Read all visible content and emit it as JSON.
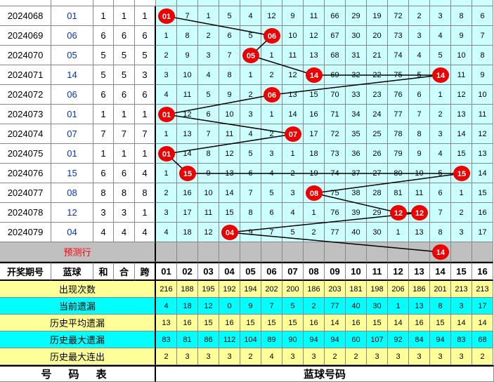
{
  "rows": [
    {
      "period": "2024068",
      "blue": "01",
      "sum": 1,
      "he": 1,
      "span": 1,
      "cells": [
        "01",
        "7",
        "1",
        "5",
        "4",
        "12",
        "9",
        "11",
        "66",
        "29",
        "19",
        "72",
        "2",
        "3",
        "8",
        "6"
      ]
    },
    {
      "period": "2024069",
      "blue": "06",
      "sum": 6,
      "he": 6,
      "span": 6,
      "cells": [
        "1",
        "8",
        "2",
        "6",
        "5",
        "06",
        "10",
        "12",
        "67",
        "30",
        "20",
        "73",
        "3",
        "4",
        "9",
        "7"
      ]
    },
    {
      "period": "2024070",
      "blue": "05",
      "sum": 5,
      "he": 5,
      "span": 5,
      "cells": [
        "2",
        "9",
        "3",
        "7",
        "05",
        "1",
        "11",
        "13",
        "68",
        "31",
        "21",
        "74",
        "4",
        "5",
        "10",
        "8"
      ]
    },
    {
      "period": "2024071",
      "blue": "14",
      "sum": 5,
      "he": 5,
      "span": 3,
      "cells": [
        "3",
        "10",
        "4",
        "8",
        "1",
        "2",
        "12",
        "14",
        "69",
        "32",
        "22",
        "75",
        "5",
        "14",
        "11",
        "9"
      ]
    },
    {
      "period": "2024072",
      "blue": "06",
      "sum": 6,
      "he": 6,
      "span": 6,
      "cells": [
        "4",
        "11",
        "5",
        "9",
        "2",
        "06",
        "13",
        "15",
        "70",
        "33",
        "23",
        "76",
        "6",
        "1",
        "12",
        "10"
      ]
    },
    {
      "period": "2024073",
      "blue": "01",
      "sum": 1,
      "he": 1,
      "span": 1,
      "cells": [
        "01",
        "12",
        "6",
        "10",
        "3",
        "1",
        "14",
        "16",
        "71",
        "34",
        "24",
        "77",
        "7",
        "2",
        "13",
        "11"
      ]
    },
    {
      "period": "2024074",
      "blue": "07",
      "sum": 7,
      "he": 7,
      "span": 7,
      "cells": [
        "1",
        "13",
        "7",
        "11",
        "4",
        "2",
        "07",
        "17",
        "72",
        "35",
        "25",
        "78",
        "8",
        "3",
        "14",
        "12"
      ]
    },
    {
      "period": "2024075",
      "blue": "01",
      "sum": 1,
      "he": 1,
      "span": 1,
      "cells": [
        "01",
        "14",
        "8",
        "12",
        "5",
        "3",
        "1",
        "18",
        "73",
        "36",
        "26",
        "79",
        "9",
        "4",
        "15",
        "13"
      ]
    },
    {
      "period": "2024076",
      "blue": "15",
      "sum": 6,
      "he": 6,
      "span": 4,
      "cells": [
        "1",
        "15",
        "9",
        "13",
        "6",
        "4",
        "2",
        "19",
        "74",
        "37",
        "27",
        "80",
        "10",
        "5",
        "15",
        "14"
      ]
    },
    {
      "period": "2024077",
      "blue": "08",
      "sum": 8,
      "he": 8,
      "span": 8,
      "cells": [
        "2",
        "16",
        "10",
        "14",
        "7",
        "5",
        "3",
        "08",
        "75",
        "38",
        "28",
        "81",
        "11",
        "6",
        "1",
        "15"
      ]
    },
    {
      "period": "2024078",
      "blue": "12",
      "sum": 3,
      "he": 3,
      "span": 1,
      "cells": [
        "3",
        "17",
        "11",
        "15",
        "8",
        "6",
        "4",
        "1",
        "76",
        "39",
        "29",
        "12",
        "12",
        "7",
        "2",
        "16"
      ]
    },
    {
      "period": "2024079",
      "blue": "04",
      "sum": 4,
      "he": 4,
      "span": 4,
      "cells": [
        "4",
        "18",
        "12",
        "04",
        "9",
        "7",
        "5",
        "2",
        "77",
        "40",
        "30",
        "1",
        "13",
        "8",
        "3",
        "17"
      ]
    }
  ],
  "predict_label": "预测行",
  "predict_ball": "14",
  "header": [
    "开奖期号",
    "蓝球",
    "和",
    "合",
    "跨",
    "01",
    "02",
    "03",
    "04",
    "05",
    "06",
    "07",
    "08",
    "09",
    "10",
    "11",
    "12",
    "13",
    "14",
    "15",
    "16"
  ],
  "stats": [
    {
      "label": "出现次数",
      "values": [
        216,
        188,
        195,
        192,
        194,
        202,
        200,
        186,
        203,
        181,
        198,
        206,
        186,
        201,
        213,
        213
      ]
    },
    {
      "label": "当前遗漏",
      "values": [
        4,
        18,
        12,
        0,
        9,
        7,
        5,
        2,
        77,
        40,
        30,
        1,
        13,
        8,
        3,
        17
      ]
    },
    {
      "label": "历史平均遗漏",
      "values": [
        13,
        16,
        15,
        16,
        15,
        15,
        15,
        16,
        14,
        16,
        15,
        14,
        16,
        15,
        14,
        14
      ]
    },
    {
      "label": "历史最大遗漏",
      "values": [
        83,
        81,
        86,
        112,
        104,
        89,
        90,
        94,
        94,
        60,
        107,
        92,
        84,
        94,
        83,
        68
      ]
    },
    {
      "label": "历史最大连出",
      "values": [
        2,
        3,
        3,
        3,
        2,
        4,
        3,
        3,
        2,
        2,
        3,
        3,
        3,
        3,
        3,
        2
      ]
    }
  ],
  "footer": [
    "号 码 表",
    "蓝球号码"
  ]
}
